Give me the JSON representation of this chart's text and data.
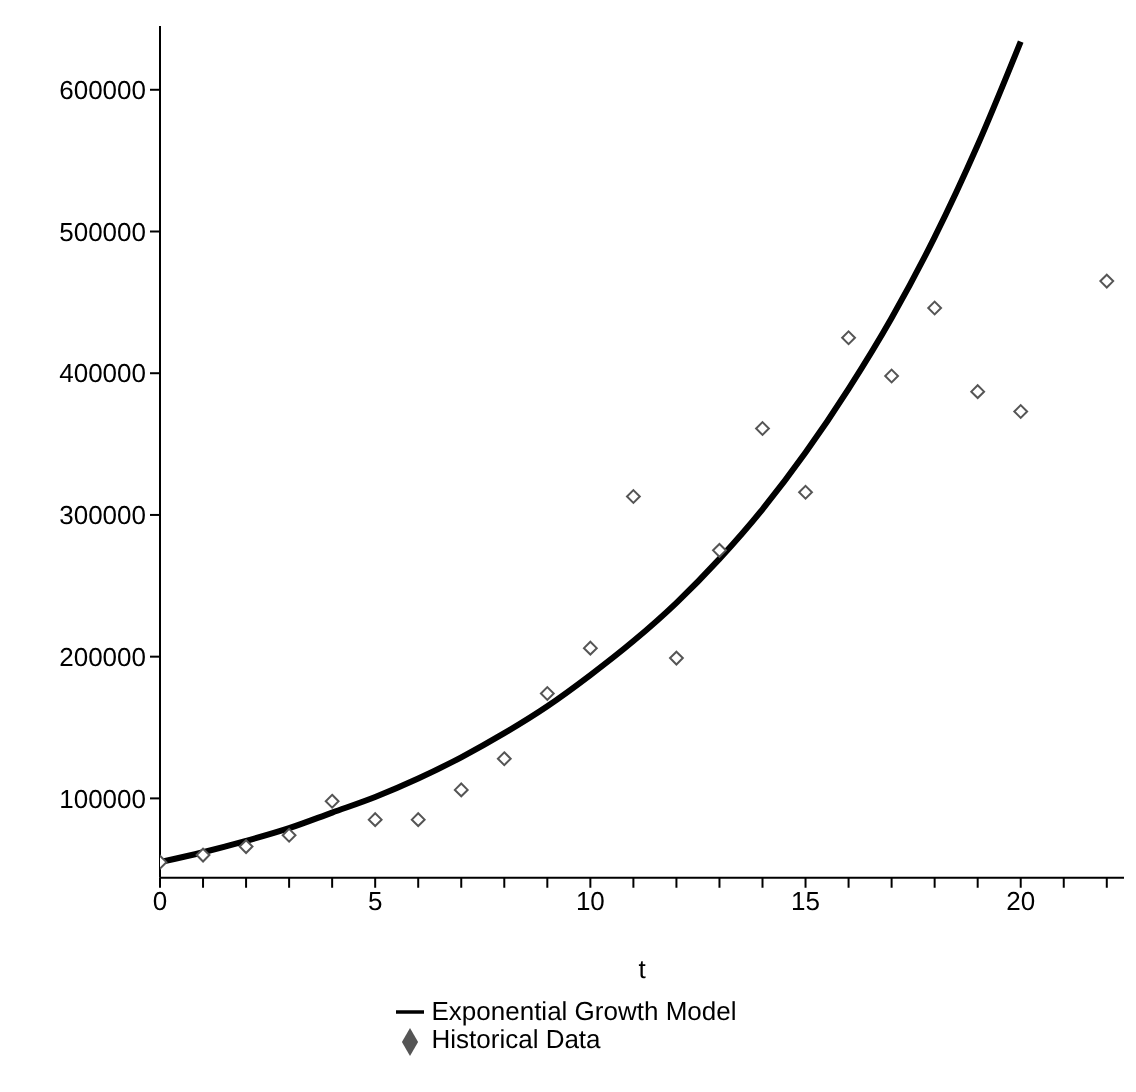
{
  "chart_data": {
    "type": "scatter",
    "xlabel": "t",
    "xlim": [
      0,
      22.4
    ],
    "ylim": [
      44000,
      645000
    ],
    "xticks": [
      0,
      {
        "value": 1,
        "label": null
      },
      {
        "value": 2,
        "label": null
      },
      {
        "value": 3,
        "label": null
      },
      {
        "value": 4,
        "label": null
      },
      5,
      {
        "value": 6,
        "label": null
      },
      {
        "value": 7,
        "label": null
      },
      {
        "value": 8,
        "label": null
      },
      {
        "value": 9,
        "label": null
      },
      10,
      {
        "value": 11,
        "label": null
      },
      {
        "value": 12,
        "label": null
      },
      {
        "value": 13,
        "label": null
      },
      {
        "value": 14,
        "label": null
      },
      15,
      {
        "value": 16,
        "label": null
      },
      {
        "value": 17,
        "label": null
      },
      {
        "value": 18,
        "label": null
      },
      {
        "value": 19,
        "label": null
      },
      20,
      {
        "value": 21,
        "label": null
      },
      {
        "value": 22,
        "label": null
      }
    ],
    "yticks": [
      100000,
      200000,
      300000,
      400000,
      500000,
      600000
    ],
    "legend": "bottom",
    "series": [
      {
        "name": "Historical Data",
        "marker": "diamond",
        "color": "#555555",
        "x": [
          0,
          1,
          2,
          3,
          4,
          5,
          6,
          7,
          8,
          9,
          10,
          11,
          12,
          13,
          14,
          15,
          16,
          17,
          18,
          19,
          20,
          22
        ],
        "values": [
          55000,
          60000,
          66000,
          74000,
          98000,
          85000,
          85000,
          106000,
          128000,
          174000,
          206000,
          313000,
          199000,
          275000,
          361000,
          316000,
          425000,
          398000,
          446000,
          387000,
          373000,
          465000
        ]
      },
      {
        "name": "Exponential Growth Model",
        "type": "line",
        "marker": "none",
        "line_style": "solid",
        "color": "#000000",
        "x": [
          0,
          1,
          2,
          3,
          4,
          5,
          6,
          7,
          8,
          9,
          10,
          11,
          12,
          13,
          14,
          15,
          16,
          17,
          18,
          19,
          20
        ],
        "values": [
          55000,
          62000,
          70000,
          79000,
          90000,
          101000,
          114000,
          129000,
          146000,
          165000,
          187000,
          211000,
          238000,
          269000,
          304000,
          344000,
          389000,
          439000,
          496000,
          561000,
          634000
        ]
      }
    ]
  }
}
